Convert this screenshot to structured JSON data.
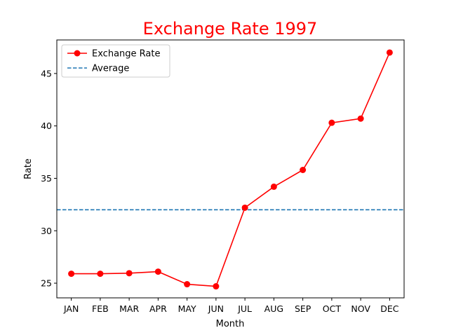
{
  "chart_data": {
    "type": "line",
    "title": "Exchange Rate 1997",
    "title_color": "#ff0000",
    "xlabel": "Month",
    "ylabel": "Rate",
    "categories": [
      "JAN",
      "FEB",
      "MAR",
      "APR",
      "MAY",
      "JUN",
      "JUL",
      "AUG",
      "SEP",
      "OCT",
      "NOV",
      "DEC"
    ],
    "series": [
      {
        "name": "Exchange Rate",
        "color": "#ff0000",
        "marker": "circle",
        "values": [
          25.9,
          25.9,
          25.95,
          26.1,
          24.9,
          24.7,
          32.2,
          34.2,
          35.8,
          40.3,
          40.7,
          47.0
        ]
      }
    ],
    "average": {
      "name": "Average",
      "value": 32.0,
      "color": "#1f77b4",
      "style": "dashed"
    },
    "ylim": [
      23.6,
      48.2
    ],
    "yticks": [
      25,
      30,
      35,
      40,
      45
    ],
    "grid": false,
    "legend_position": "top-left"
  }
}
